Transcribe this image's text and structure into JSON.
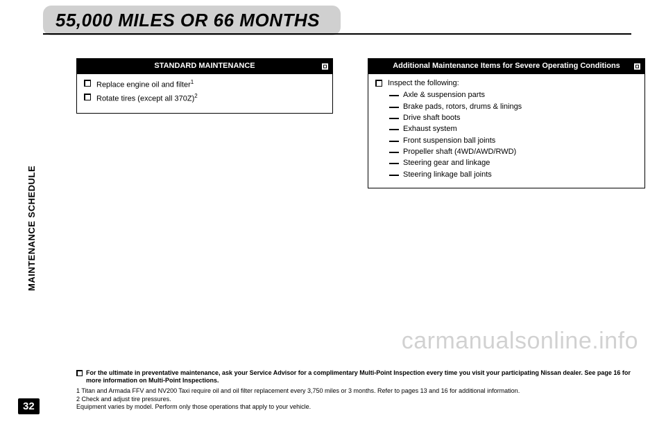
{
  "header": {
    "title": "55,000 MILES OR 66 MONTHS"
  },
  "side_label": "MAINTENANCE SCHEDULE",
  "page_number": "32",
  "watermark": "carmanualsonline.info",
  "standard_box": {
    "title": "STANDARD MAINTENANCE",
    "items": [
      {
        "text": "Replace engine oil and filter",
        "sup": "1"
      },
      {
        "text": "Rotate tires (except all 370Z)",
        "sup": "2"
      }
    ]
  },
  "additional_box": {
    "title": "Additional Maintenance Items for Severe Operating Conditions",
    "lead": "Inspect the following:",
    "subitems": [
      "Axle & suspension parts",
      "Brake pads, rotors, drums & linings",
      "Drive shaft boots",
      "Exhaust system",
      "Front suspension ball joints",
      "Propeller shaft (4WD/AWD/RWD)",
      "Steering gear and linkage",
      "Steering linkage ball joints"
    ]
  },
  "footnotes": {
    "lead": "For the ultimate in preventative maintenance, ask your Service Advisor for a complimentary Multi-Point Inspection every time you visit your participating Nissan dealer. See page 16 for more information on Multi-Point Inspections.",
    "lines": [
      "1 Titan and Armada FFV and NV200 Taxi require oil and oil filter replacement every 3,750 miles or 3 months. Refer to pages 13 and 16 for additional information.",
      "2 Check and adjust tire pressures.",
      "Equipment varies by model. Perform only those operations that apply to your vehicle."
    ]
  }
}
